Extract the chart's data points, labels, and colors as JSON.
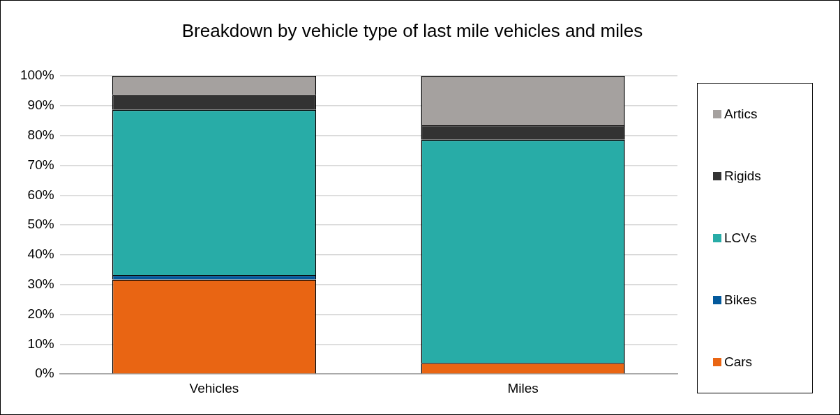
{
  "chart_data": {
    "type": "bar",
    "title": "Breakdown by vehicle type of last mile vehicles and miles",
    "categories": [
      "Vehicles",
      "Miles"
    ],
    "stacked": true,
    "series": [
      {
        "name": "Cars",
        "color": "#e96513",
        "values": [
          31.7,
          3.7
        ]
      },
      {
        "name": "Bikes",
        "color": "#03599c",
        "values": [
          1.5,
          null
        ]
      },
      {
        "name": "LCVs",
        "color": "#28aca7",
        "values": [
          55.4,
          74.9
        ]
      },
      {
        "name": "Rigids",
        "color": "#333333",
        "values": [
          5.0,
          4.8
        ]
      },
      {
        "name": "Artics",
        "color": "#a5a19f",
        "values": [
          6.4,
          16.6
        ]
      }
    ],
    "ylim": [
      0,
      100
    ],
    "yticks": [
      {
        "value": 0,
        "label": "0%"
      },
      {
        "value": 10,
        "label": "10%"
      },
      {
        "value": 20,
        "label": "20%"
      },
      {
        "value": 30,
        "label": "30%"
      },
      {
        "value": 40,
        "label": "40%"
      },
      {
        "value": 50,
        "label": "50%"
      },
      {
        "value": 60,
        "label": "60%"
      },
      {
        "value": 70,
        "label": "70%"
      },
      {
        "value": 80,
        "label": "80%"
      },
      {
        "value": 90,
        "label": "90%"
      },
      {
        "value": 100,
        "label": "100%"
      }
    ],
    "grid": "y",
    "legend": "right"
  }
}
